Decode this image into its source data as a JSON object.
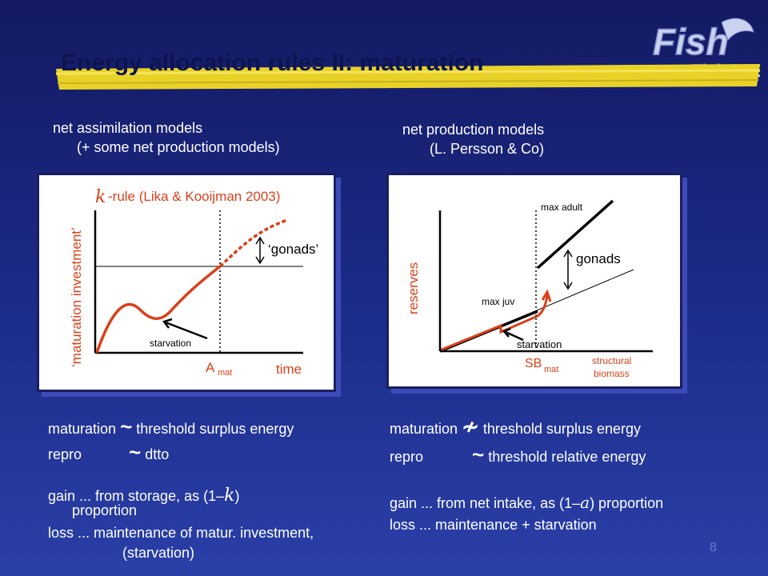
{
  "slide": {
    "title": "Energy allocation rules II: maturation",
    "page_number": "8",
    "logo": {
      "text_top": "Fish",
      "text_bottom": "FishACE",
      "icon": "fish-logo-icon"
    }
  },
  "left": {
    "heading_line1": "net assimilation models",
    "heading_line2": "(+ some net production models)",
    "chart": {
      "rule_label": "-rule (Lika & Kooijman 2003)",
      "kappa": "k",
      "ylabel": "‘maturation investment’",
      "xlabel": "time",
      "gonads_label": "‘gonads’",
      "starvation_label": "starvation",
      "amat_main": "A",
      "amat_sub": "mat"
    },
    "rows": [
      {
        "label": "maturation",
        "sym": "~",
        "text": "threshold surplus energy"
      },
      {
        "label": "repro",
        "sym": "~",
        "text": "dtto"
      }
    ],
    "gain_line1": "gain ... from storage, as (1–",
    "gain_sym": "k",
    "gain_line1_end": ")",
    "gain_line2": "proportion",
    "loss_line1": "loss ... maintenance of matur. investment,",
    "loss_line2": "(starvation)"
  },
  "right": {
    "heading_line1": "net production models",
    "heading_line2": "(L. Persson & Co)",
    "chart": {
      "ylabel": "reserves",
      "max_adult": "max adult",
      "max_juv": "max juv",
      "gonads_label": "gonads",
      "starvation_label": "starvation",
      "sb_main": "SB",
      "sb_sub": "mat",
      "xlabel_line1": "structural",
      "xlabel_line2": "biomass"
    },
    "rows": [
      {
        "label": "maturation",
        "sym": "≁",
        "text": "threshold surplus energy"
      },
      {
        "label": "repro",
        "sym": "~",
        "text": "threshold relative energy"
      }
    ],
    "gain_line1": "gain ... from net intake, as (1–",
    "gain_sym": "a",
    "gain_line1_end": ") proportion",
    "loss_line1": "loss ... maintenance + starvation"
  },
  "colors": {
    "accent_red": "#d9401a",
    "axis": "#000000",
    "highlight": "#e8d228",
    "title": "#0d1550"
  }
}
